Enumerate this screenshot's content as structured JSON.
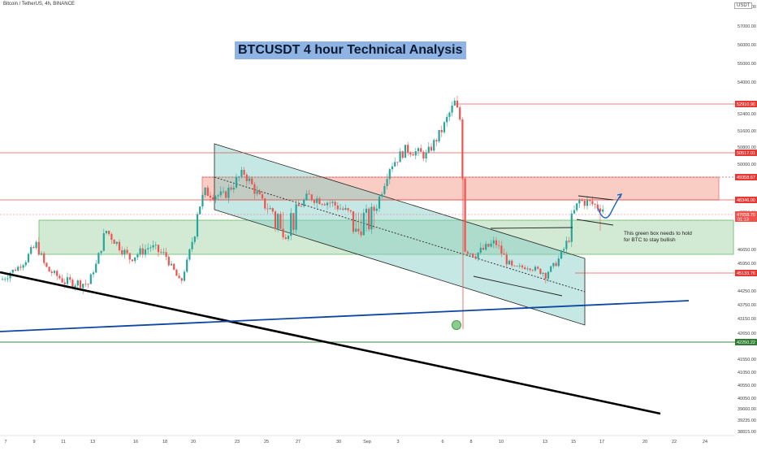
{
  "header": {
    "symbol_line": "Bitcoin / TetherUS, 4h, BINANCE",
    "unit": "USDT"
  },
  "chart_data": {
    "type": "candlestick",
    "title": "BTCUSDT 4 hour Technical Analysis",
    "ylim": [
      38815,
      57650
    ],
    "y_ticks": [
      58000,
      57000,
      56000,
      55000,
      54000,
      52400,
      51600,
      50800,
      50000,
      47750,
      46650,
      45950,
      44250,
      43750,
      43150,
      42650,
      41550,
      41050,
      40550,
      40050,
      39660,
      39235,
      38815
    ],
    "x_ticks": [
      "7",
      "9",
      "11",
      "13",
      "16",
      "18",
      "20",
      "23",
      "25",
      "27",
      "30",
      "Sep",
      "3",
      "6",
      "8",
      "10",
      "13",
      "15",
      "17",
      "20",
      "22",
      "24"
    ],
    "price_levels": [
      {
        "value": "52910.90",
        "color": "#e53935"
      },
      {
        "value": "50517.01",
        "color": "#e53935"
      },
      {
        "value": "49358.67",
        "color": "#e53935"
      },
      {
        "value": "48346.00",
        "color": "#e53935"
      },
      {
        "value": "47658.70",
        "color": "#ef5350"
      },
      {
        "value": "45133.76",
        "color": "#e53935"
      },
      {
        "value": "42250.22",
        "color": "#2e7d32"
      }
    ],
    "current_sublabel": "01:13",
    "annotation": "This green box needs to hold for BTC to stay bullish",
    "colors": {
      "up": "#26a69a",
      "down": "#ef5350",
      "resistance": "#f4a393",
      "support": "#a5d6a7",
      "channel": "#80cbc4",
      "trend_black": "#000000",
      "trend_blue": "#0d47a1"
    },
    "grid": false
  }
}
